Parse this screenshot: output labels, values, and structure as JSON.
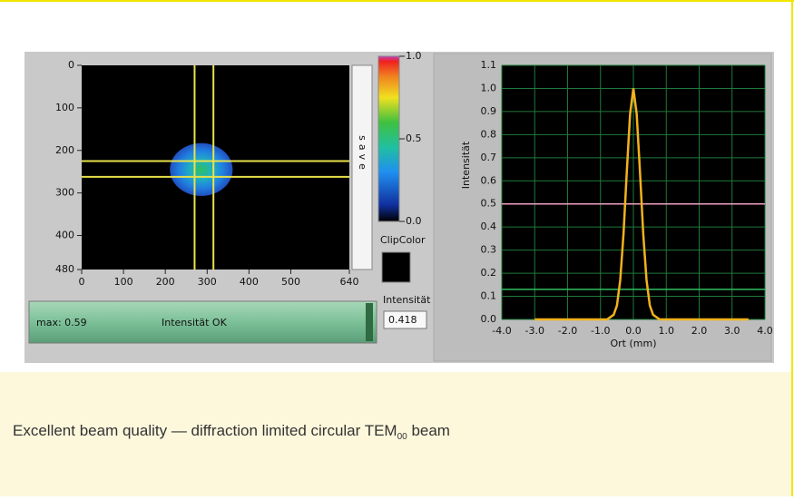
{
  "labels": {
    "save": "save",
    "clip_color": "ClipColor",
    "intensity_label": "Intensität",
    "intensity_value": "0.418",
    "max": "max: 0.59",
    "status": "Intensität OK"
  },
  "caption": {
    "text": "Excellent beam quality — diffraction limited circular TEM",
    "subscript": "00",
    "suffix": " beam"
  },
  "chart_data": [
    {
      "type": "heatmap",
      "xlim": [
        0,
        640
      ],
      "ylim": [
        0,
        480
      ],
      "y_reversed": true,
      "xticks": [
        0,
        100,
        200,
        300,
        400,
        500,
        640
      ],
      "yticks": [
        0,
        100,
        200,
        300,
        400,
        480
      ],
      "spot": {
        "x": 286,
        "y": 245,
        "rx": 75,
        "ry": 62
      },
      "cursors": {
        "x": [
          270,
          315
        ],
        "y": [
          225,
          262
        ],
        "color": "#e8e24a"
      },
      "colorbar": {
        "lim": [
          0,
          1
        ],
        "ticks": [
          {
            "value": 1,
            "label": "1.0"
          },
          0.5,
          {
            "value": 0,
            "label": "0.0"
          }
        ]
      }
    },
    {
      "type": "line",
      "xlabel": "Ort (mm)",
      "ylabel": "Intensität",
      "grid": true,
      "xlim": [
        -4,
        4
      ],
      "ylim": [
        0,
        1.1
      ],
      "xticks": [
        {
          "value": -4,
          "label": "-4.0"
        },
        {
          "value": -3,
          "label": "-3.0"
        },
        {
          "value": -2,
          "label": "-2.0"
        },
        {
          "value": -1,
          "label": "-1.0"
        },
        {
          "value": 0,
          "label": "0.0"
        },
        {
          "value": 1,
          "label": "1.0"
        },
        {
          "value": 2,
          "label": "2.0"
        },
        {
          "value": 3,
          "label": "3.0"
        },
        {
          "value": 4,
          "label": "4.0"
        }
      ],
      "yticks": [
        {
          "value": 0,
          "label": "0.0"
        },
        0.1,
        0.2,
        0.3,
        0.4,
        0.5,
        0.6,
        0.7,
        0.8,
        0.9,
        {
          "value": 1,
          "label": "1.0"
        },
        1.1
      ],
      "x": [
        -3,
        -1,
        -0.8,
        -0.6,
        -0.5,
        -0.4,
        -0.3,
        -0.2,
        -0.1,
        0,
        0.1,
        0.2,
        0.3,
        0.4,
        0.5,
        0.6,
        0.8,
        1,
        3.5
      ],
      "series": [
        {
          "color": "#f2b21c",
          "values": [
            0,
            0,
            0,
            0.02,
            0.06,
            0.17,
            0.37,
            0.64,
            0.89,
            1.0,
            0.89,
            0.64,
            0.37,
            0.17,
            0.06,
            0.02,
            0,
            0,
            0
          ]
        }
      ],
      "hlines": [
        {
          "value": 0.5,
          "color": "#f0a0c0"
        },
        {
          "value": 0.13,
          "color": "#30c060"
        }
      ]
    }
  ]
}
